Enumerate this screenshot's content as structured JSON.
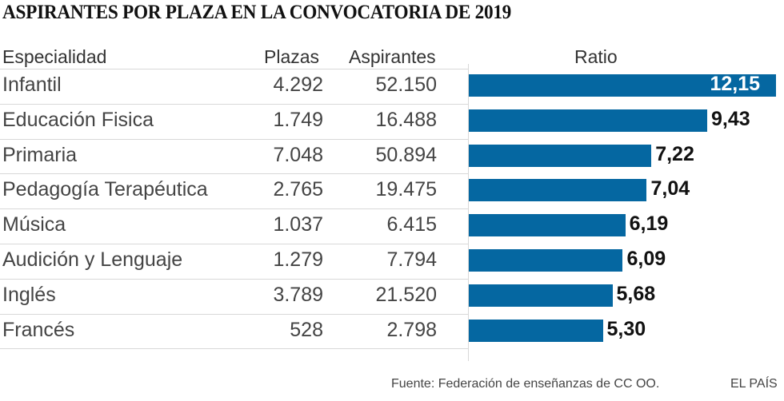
{
  "title": "ASPIRANTES POR PLAZA EN LA CONVOCATORIA DE 2019",
  "headers": {
    "especialidad": "Especialidad",
    "plazas": "Plazas",
    "aspirantes": "Aspirantes",
    "ratio": "Ratio"
  },
  "colors": {
    "bar": "#0567a1"
  },
  "chart_data": {
    "type": "bar",
    "orientation": "horizontal",
    "title": "ASPIRANTES POR PLAZA EN LA CONVOCATORIA DE 2019",
    "categories": [
      "Infantil",
      "Educación Fisica",
      "Primaria",
      "Pedagogía Terapéutica",
      "Música",
      "Audición y Lenguaje",
      "Inglés",
      "Francés"
    ],
    "plazas": [
      "4.292",
      "1.749",
      "7.048",
      "2.765",
      "1.037",
      "1.279",
      "3.789",
      "528"
    ],
    "aspirantes": [
      "52.150",
      "16.488",
      "50.894",
      "19.475",
      "6.415",
      "7.794",
      "21.520",
      "2.798"
    ],
    "values": [
      12.15,
      9.43,
      7.22,
      7.04,
      6.19,
      6.09,
      5.68,
      5.3
    ],
    "value_labels": [
      "12,15",
      "9,43",
      "7,22",
      "7,04",
      "6,19",
      "6,09",
      "5,68",
      "5,30"
    ],
    "xlim": [
      0,
      12.15
    ],
    "grid": false
  },
  "footer": {
    "source": "Fuente: Federación de enseñanzas de CC OO.",
    "brand": "EL PAÍS"
  }
}
